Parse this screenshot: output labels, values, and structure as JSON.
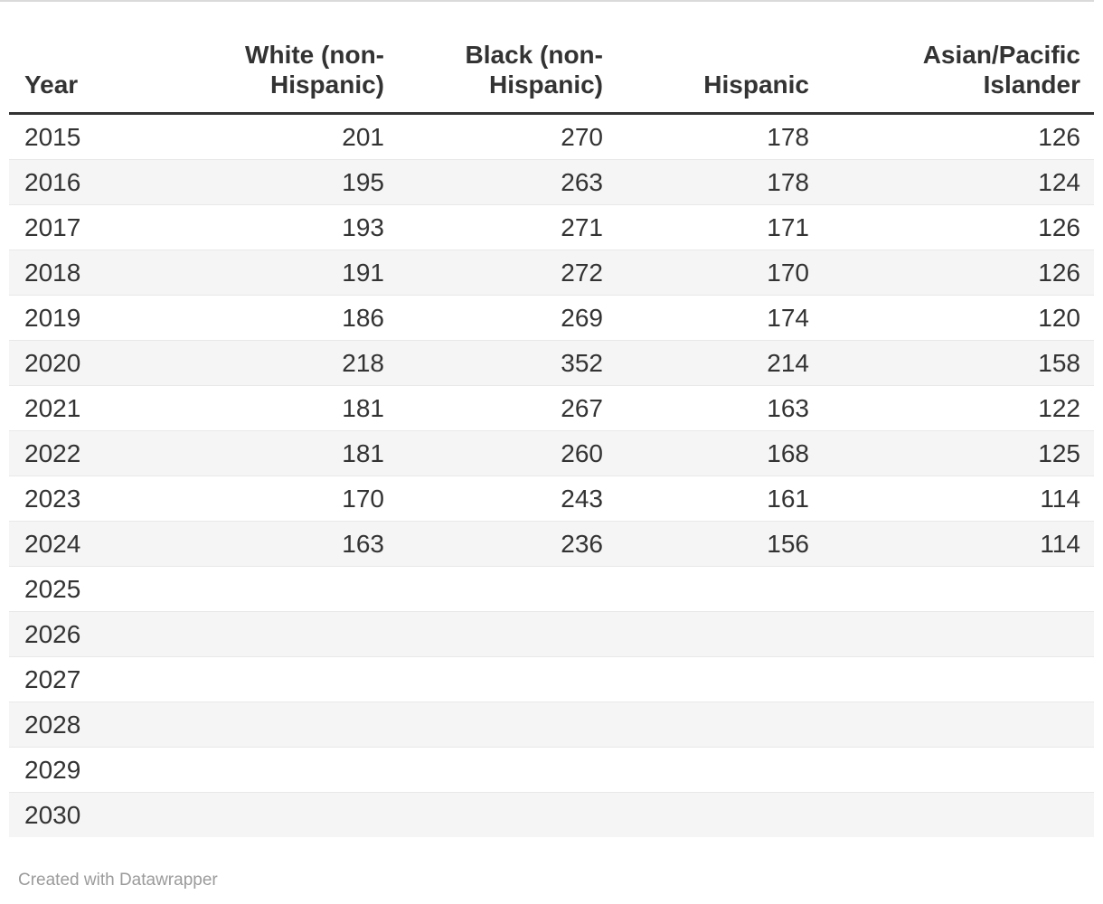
{
  "colors": {
    "text": "#333333",
    "header_rule": "#333333",
    "row_rule": "#e8e8e8",
    "stripe": "#f5f5f5",
    "top_rule": "#dadada",
    "footer_text": "#9b9b9b"
  },
  "chart_data": {
    "type": "table",
    "columns": [
      "Year",
      "White (non-Hispanic)",
      "Black (non-Hispanic)",
      "Hispanic",
      "Asian/Pacific Islander"
    ],
    "column_ids": [
      "year",
      "white-non-hispanic",
      "black-non-hispanic",
      "hispanic",
      "asian-pacific-islander"
    ],
    "column_align": [
      "left",
      "right",
      "right",
      "right",
      "right"
    ],
    "rows": [
      [
        "2015",
        "201",
        "270",
        "178",
        "126"
      ],
      [
        "2016",
        "195",
        "263",
        "178",
        "124"
      ],
      [
        "2017",
        "193",
        "271",
        "171",
        "126"
      ],
      [
        "2018",
        "191",
        "272",
        "170",
        "126"
      ],
      [
        "2019",
        "186",
        "269",
        "174",
        "120"
      ],
      [
        "2020",
        "218",
        "352",
        "214",
        "158"
      ],
      [
        "2021",
        "181",
        "267",
        "163",
        "122"
      ],
      [
        "2022",
        "181",
        "260",
        "168",
        "125"
      ],
      [
        "2023",
        "170",
        "243",
        "161",
        "114"
      ],
      [
        "2024",
        "163",
        "236",
        "156",
        "114"
      ],
      [
        "2025",
        "",
        "",
        "",
        ""
      ],
      [
        "2026",
        "",
        "",
        "",
        ""
      ],
      [
        "2027",
        "",
        "",
        "",
        ""
      ],
      [
        "2028",
        "",
        "",
        "",
        ""
      ],
      [
        "2029",
        "",
        "",
        "",
        ""
      ],
      [
        "2030",
        "",
        "",
        "",
        ""
      ]
    ],
    "grid": "horizontal-rules",
    "striped": true,
    "legend_position": "none",
    "title": "",
    "xlabel": "",
    "ylabel": ""
  },
  "footer": {
    "attribution_label": "Created with Datawrapper"
  }
}
